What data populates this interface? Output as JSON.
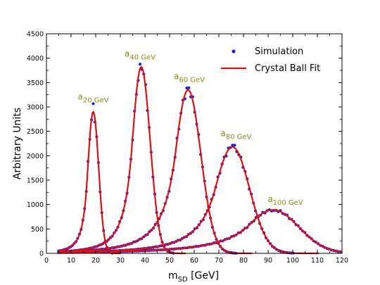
{
  "chart_data": {
    "type": "scatter",
    "xlabel": "m",
    "xlabel_sub": "SD",
    "xlabel_unit": " [GeV]",
    "ylabel": "Arbitrary Units",
    "xlim": [
      0,
      120
    ],
    "ylim": [
      0,
      4500
    ],
    "xticks": [
      0,
      10,
      20,
      30,
      40,
      50,
      60,
      70,
      80,
      90,
      100,
      110,
      120
    ],
    "yticks": [
      0,
      500,
      1000,
      1500,
      2000,
      2500,
      3000,
      3500,
      4000,
      4500
    ],
    "grid": false,
    "legend_position": "top-right",
    "legend": [
      {
        "label": "Simulation",
        "marker": "point",
        "color": "#1f1fe0"
      },
      {
        "label": "Crystal Ball Fit",
        "marker": "line",
        "color": "#e01010"
      }
    ],
    "colors": {
      "simulation": "#1f1fe0",
      "fit": "#e01010",
      "annotation": "#8a8a14"
    },
    "series": [
      {
        "label_base": "a",
        "label_sub": "20 GeV",
        "mean": 19,
        "sigma": 2.2,
        "peak": 2900,
        "sim_peak": 3000,
        "alpha": 1.2,
        "n": 3,
        "label_x": 19,
        "label_y": 3150
      },
      {
        "label_base": "a",
        "label_sub": "40 GeV",
        "mean": 38.5,
        "sigma": 3.6,
        "peak": 3820,
        "sim_peak": 3840,
        "alpha": 1.1,
        "n": 3,
        "label_x": 38,
        "label_y": 4030
      },
      {
        "label_base": "a",
        "label_sub": "60 GeV",
        "mean": 57.5,
        "sigma": 5.2,
        "peak": 3350,
        "sim_peak": 3380,
        "alpha": 1.0,
        "n": 3,
        "label_x": 58,
        "label_y": 3570
      },
      {
        "label_base": "a",
        "label_sub": "80 GeV",
        "mean": 75.5,
        "sigma": 7.0,
        "peak": 2180,
        "sim_peak": 2260,
        "alpha": 1.0,
        "n": 3,
        "label_x": 77,
        "label_y": 2400
      },
      {
        "label_base": "a",
        "label_sub": "100 GeV",
        "mean": 92,
        "sigma": 10.5,
        "peak": 890,
        "sim_peak": 860,
        "alpha": 0.9,
        "n": 3,
        "label_x": 97,
        "label_y": 1050
      }
    ]
  }
}
